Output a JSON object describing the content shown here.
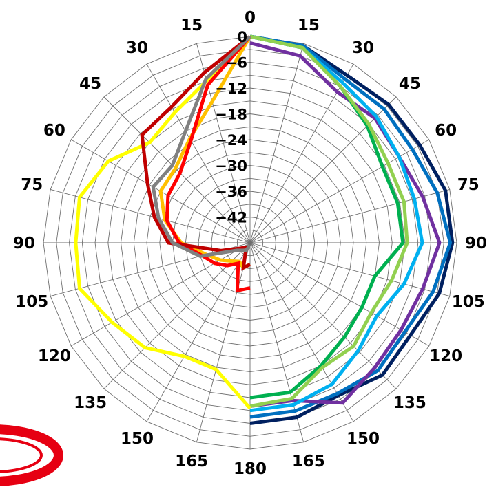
{
  "chart_data": {
    "type": "polar-line",
    "title": "",
    "angle_unit": "degrees",
    "angle_ticks": [
      0,
      15,
      30,
      45,
      60,
      75,
      90,
      105,
      120,
      135,
      150,
      165,
      180
    ],
    "radial_ticks": [
      0,
      -6,
      -12,
      -18,
      -24,
      -30,
      -36,
      -42
    ],
    "rlim": [
      -48,
      0
    ],
    "grid": true,
    "legend": "none",
    "series": [
      {
        "color": "#002060",
        "side": "right",
        "angles": [
          0,
          15,
          30,
          45,
          60,
          75,
          90,
          105,
          120,
          135,
          150,
          165,
          180
        ],
        "values": [
          0,
          -0.5,
          -3,
          -2.5,
          -2.5,
          -1,
          -1,
          -2.5,
          -5,
          -4.5,
          -7,
          -6,
          -6
        ]
      },
      {
        "color": "#0070C0",
        "side": "right",
        "angles": [
          0,
          15,
          30,
          45,
          60,
          75,
          90,
          105,
          120,
          135,
          150,
          165,
          180
        ],
        "values": [
          0,
          -0.5,
          -4,
          -4,
          -4.5,
          -3,
          -1.5,
          -4,
          -6.5,
          -6,
          -7.5,
          -7.5,
          -7.5
        ]
      },
      {
        "color": "#7030A0",
        "side": "right",
        "angles": [
          0,
          15,
          30,
          45,
          60,
          75,
          90,
          105,
          120,
          135,
          150,
          165,
          180
        ],
        "values": [
          -1.5,
          -3,
          -7.5,
          -7,
          -8,
          -6.5,
          -4,
          -6.5,
          -7.5,
          -7,
          -5,
          -10,
          -10
        ]
      },
      {
        "color": "#00B0F0",
        "side": "right",
        "angles": [
          0,
          15,
          30,
          45,
          60,
          75,
          90,
          105,
          120,
          135,
          150,
          165,
          180
        ],
        "values": [
          0,
          -1,
          -5,
          -6.5,
          -8,
          -8.5,
          -8,
          -11,
          -14,
          -12.5,
          -10,
          -9,
          -9
        ]
      },
      {
        "color": "#00B050",
        "side": "right",
        "angles": [
          0,
          15,
          30,
          45,
          60,
          75,
          90,
          105,
          120,
          135,
          150,
          165,
          180
        ],
        "values": [
          0,
          -1,
          -6,
          -9.5,
          -12.5,
          -12.5,
          -12.5,
          -18,
          -18,
          -17,
          -15,
          -12,
          -12
        ]
      },
      {
        "color": "#92D050",
        "side": "right",
        "angles": [
          0,
          15,
          30,
          45,
          60,
          75,
          90,
          105,
          120,
          135,
          150,
          165,
          180
        ],
        "values": [
          0,
          -1,
          -6,
          -9,
          -11,
          -11,
          -11.5,
          -14,
          -15.5,
          -14,
          -14.5,
          -10.5,
          -10
        ]
      },
      {
        "color": "#FFFF00",
        "side": "left",
        "angles": [
          0,
          15,
          30,
          45,
          60,
          75,
          90,
          105,
          120,
          135,
          150,
          165,
          180
        ],
        "values": [
          0,
          -9,
          -13,
          -15,
          -10,
          -7,
          -7.5,
          -7,
          -11,
          -13.5,
          -17.5,
          -17.5,
          -9.5
        ]
      },
      {
        "color": "#FFC000",
        "side": "left",
        "angles": [
          0,
          15,
          30,
          45,
          60,
          75,
          90,
          105,
          120,
          135,
          150,
          165,
          180
        ],
        "values": [
          0,
          -14,
          -20,
          -23.5,
          -24,
          -27.5,
          -32,
          -37.5,
          -40,
          -42,
          -43,
          -42,
          -43
        ]
      },
      {
        "color": "#FF0000",
        "side": "left",
        "angles": [
          0,
          15,
          30,
          45,
          60,
          75,
          90,
          105,
          120,
          135,
          150,
          165,
          180
        ],
        "values": [
          0,
          -10,
          -20.5,
          -25,
          -26,
          -28,
          -31.5,
          -36.5,
          -38.5,
          -40.5,
          -42.5,
          -36.5,
          -37.5
        ]
      },
      {
        "color": "#C00000",
        "side": "left",
        "angles": [
          0,
          15,
          30,
          45,
          60,
          75,
          90,
          105,
          120,
          135,
          150,
          165,
          180
        ],
        "values": [
          0,
          -7,
          -11.5,
          -12.5,
          -20.5,
          -25,
          -29,
          -41,
          -45.5,
          -46.5,
          -46,
          -42,
          -43
        ]
      },
      {
        "color": "#808080",
        "side": "left",
        "angles": [
          0,
          15,
          30,
          45,
          60,
          75,
          90,
          105,
          120,
          135,
          150,
          165,
          180
        ],
        "values": [
          0,
          -8.5,
          -18,
          -22.5,
          -22,
          -26,
          -30,
          -36,
          -44.5,
          -45.5,
          -46,
          -47,
          -47
        ]
      }
    ]
  },
  "logo": {
    "color": "#E60012"
  }
}
